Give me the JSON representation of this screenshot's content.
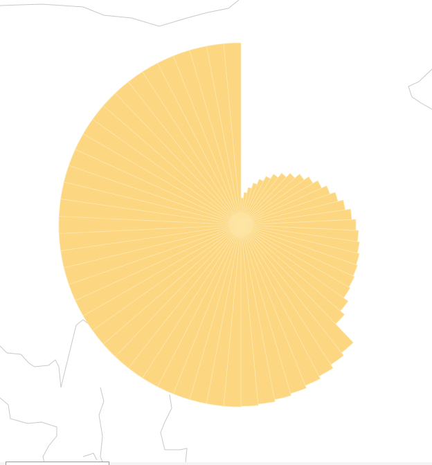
{
  "chart_data": {
    "type": "radial-bar",
    "start_angle_deg": 0,
    "direction": "clockwise",
    "fill_color": "#fcd680",
    "separator_color": "#fde8b0",
    "values": [
      39,
      47,
      55,
      63,
      71,
      79,
      87,
      95,
      103,
      112,
      120,
      128,
      136,
      144,
      152,
      160,
      166,
      170,
      173,
      176,
      178,
      180,
      182,
      190,
      198,
      235,
      240,
      246,
      250,
      254,
      257,
      260,
      262,
      263,
      263,
      263,
      263,
      263,
      263,
      263,
      263,
      263,
      263,
      263,
      263,
      263,
      263,
      263,
      263,
      263,
      263,
      263,
      263,
      263,
      263,
      263,
      263,
      263,
      263,
      263,
      263,
      263,
      263,
      263,
      263,
      263
    ]
  },
  "map": {
    "border_color": "#c8c8c8",
    "background": "#ffffff"
  }
}
